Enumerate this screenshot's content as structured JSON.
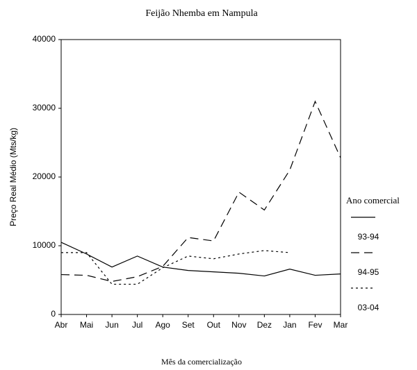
{
  "chart_data": {
    "type": "line",
    "title": "Feijão Nhemba em Nampula",
    "x_label": "Mês da comercialização",
    "y_label": "Preço Real Médio (Mts/kg)",
    "legend_title": "Ano comercial",
    "legend": "right",
    "categories": [
      "Abr",
      "Mai",
      "Jun",
      "Jul",
      "Ago",
      "Set",
      "Out",
      "Nov",
      "Dez",
      "Jan",
      "Fev",
      "Mar"
    ],
    "series": [
      {
        "name": "93-94",
        "color": "#000000",
        "style": "solid",
        "values": [
          10500,
          8800,
          6900,
          8500,
          6900,
          6400,
          6200,
          6000,
          5600,
          6600,
          5700,
          5900
        ]
      },
      {
        "name": "94-95",
        "color": "#000000",
        "style": "dashed",
        "values": [
          5800,
          5700,
          4800,
          5500,
          7000,
          11200,
          10700,
          17800,
          15200,
          21000,
          31000,
          22800
        ]
      },
      {
        "name": "03-04",
        "color": "#000000",
        "style": "dotted",
        "values": [
          9000,
          9000,
          4400,
          4400,
          6800,
          8500,
          8100,
          8800,
          9300,
          9000,
          null,
          null
        ]
      }
    ],
    "ylim": [
      0,
      40000
    ],
    "yticks": [
      0,
      10000,
      20000,
      30000,
      40000
    ]
  }
}
